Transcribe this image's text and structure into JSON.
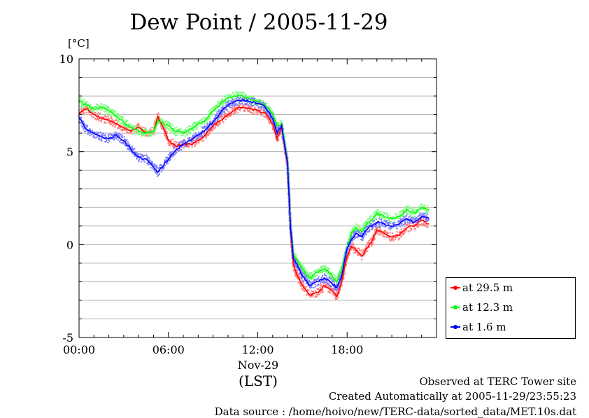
{
  "chart_data": {
    "type": "line",
    "title": "Dew Point / 2005-11-29",
    "ylabel": "[°C]",
    "xlabel": "(LST)",
    "date_label": "Nov-29",
    "ylim": [
      -5,
      10
    ],
    "xlim": [
      0,
      24
    ],
    "y_ticks": [
      {
        "v": 10,
        "label": "10"
      },
      {
        "v": 5,
        "label": "5"
      },
      {
        "v": 0,
        "label": "0"
      },
      {
        "v": -5,
        "label": "-5"
      }
    ],
    "x_ticks": [
      {
        "v": 0,
        "label": "00:00"
      },
      {
        "v": 6,
        "label": "06:00"
      },
      {
        "v": 12,
        "label": "12:00"
      },
      {
        "v": 18,
        "label": "18:00"
      }
    ],
    "grid": true,
    "legend_position": "bottom-right, outside",
    "series": [
      {
        "name": "at 29.5 m",
        "color": "#ff0000",
        "x": [
          0,
          0.5,
          1,
          1.5,
          2,
          2.5,
          3,
          3.5,
          4,
          4.5,
          5,
          5.3,
          5.7,
          6,
          6.5,
          7,
          7.5,
          8,
          8.5,
          9,
          9.5,
          10,
          10.5,
          11,
          11.5,
          12,
          12.5,
          13,
          13.3,
          13.6,
          14,
          14.2,
          14.4,
          14.6,
          15,
          15.5,
          16,
          16.5,
          17,
          17.3,
          17.6,
          18,
          18.3,
          18.6,
          19,
          19.3,
          19.6,
          20,
          20.5,
          21,
          21.5,
          22,
          22.5,
          23,
          23.5
        ],
        "y": [
          7.1,
          7.3,
          7.0,
          6.8,
          6.7,
          6.5,
          6.3,
          6.1,
          6.3,
          6.0,
          6.1,
          6.9,
          6.2,
          5.6,
          5.3,
          5.4,
          5.4,
          5.6,
          5.9,
          6.4,
          6.7,
          7.0,
          7.3,
          7.4,
          7.3,
          7.2,
          7.1,
          6.5,
          5.7,
          6.3,
          4.3,
          0.8,
          -1.1,
          -1.6,
          -2.2,
          -2.7,
          -2.6,
          -2.2,
          -2.5,
          -2.8,
          -2.1,
          -0.6,
          -0.1,
          -0.3,
          -0.6,
          -0.2,
          0.1,
          0.8,
          0.6,
          0.4,
          0.5,
          0.9,
          1.0,
          1.3,
          1.1
        ]
      },
      {
        "name": "at 12.3 m",
        "color": "#00ff00",
        "x": [
          0,
          0.5,
          1,
          1.5,
          2,
          2.5,
          3,
          3.5,
          4,
          4.5,
          5,
          5.3,
          5.7,
          6,
          6.5,
          7,
          7.5,
          8,
          8.5,
          9,
          9.5,
          10,
          10.5,
          11,
          11.5,
          12,
          12.5,
          13,
          13.3,
          13.6,
          14,
          14.2,
          14.4,
          14.6,
          15,
          15.5,
          16,
          16.5,
          17,
          17.3,
          17.6,
          18,
          18.3,
          18.6,
          19,
          19.3,
          19.6,
          20,
          20.5,
          21,
          21.5,
          22,
          22.5,
          23,
          23.5
        ],
        "y": [
          7.7,
          7.5,
          7.3,
          7.4,
          7.2,
          6.9,
          6.6,
          6.3,
          6.1,
          6.0,
          6.1,
          6.7,
          6.5,
          6.4,
          6.1,
          6.0,
          6.2,
          6.5,
          6.7,
          7.2,
          7.6,
          7.9,
          8.0,
          8.0,
          7.8,
          7.7,
          7.5,
          7.0,
          6.4,
          6.5,
          4.5,
          0.9,
          -0.6,
          -0.8,
          -1.3,
          -1.8,
          -1.5,
          -1.3,
          -1.7,
          -2.0,
          -1.4,
          -0.2,
          0.6,
          0.9,
          0.7,
          1.1,
          1.3,
          1.7,
          1.5,
          1.4,
          1.5,
          1.9,
          1.7,
          2.0,
          1.9
        ]
      },
      {
        "name": "at 1.6 m",
        "color": "#0000ff",
        "x": [
          0,
          0.5,
          1,
          1.5,
          2,
          2.5,
          3,
          3.5,
          4,
          4.5,
          5,
          5.3,
          5.7,
          6,
          6.5,
          7,
          7.5,
          8,
          8.5,
          9,
          9.5,
          10,
          10.5,
          11,
          11.5,
          12,
          12.5,
          13,
          13.3,
          13.6,
          14,
          14.2,
          14.4,
          14.6,
          15,
          15.5,
          16,
          16.5,
          17,
          17.3,
          17.6,
          18,
          18.3,
          18.6,
          19,
          19.3,
          19.6,
          20,
          20.5,
          21,
          21.5,
          22,
          22.5,
          23,
          23.5
        ],
        "y": [
          6.8,
          6.2,
          6.0,
          5.8,
          5.7,
          5.9,
          5.6,
          5.1,
          4.7,
          4.6,
          4.2,
          3.9,
          4.3,
          4.6,
          5.1,
          5.4,
          5.6,
          5.9,
          6.2,
          6.6,
          7.1,
          7.5,
          7.7,
          7.8,
          7.7,
          7.6,
          7.4,
          6.8,
          6.0,
          6.4,
          4.4,
          0.9,
          -0.8,
          -1.0,
          -1.7,
          -2.2,
          -2.0,
          -1.8,
          -2.1,
          -2.3,
          -1.8,
          -0.2,
          0.3,
          0.6,
          0.4,
          0.8,
          1.0,
          1.2,
          1.1,
          1.0,
          1.1,
          1.4,
          1.2,
          1.5,
          1.4
        ]
      }
    ]
  },
  "footer": {
    "line1": "Observed at TERC Tower site",
    "line2": "Created Automatically at 2005-11-29/23:55:23",
    "line3": "Data source : /home/hoivo/new/TERC-data/sorted_data/MET.10s.dat"
  }
}
